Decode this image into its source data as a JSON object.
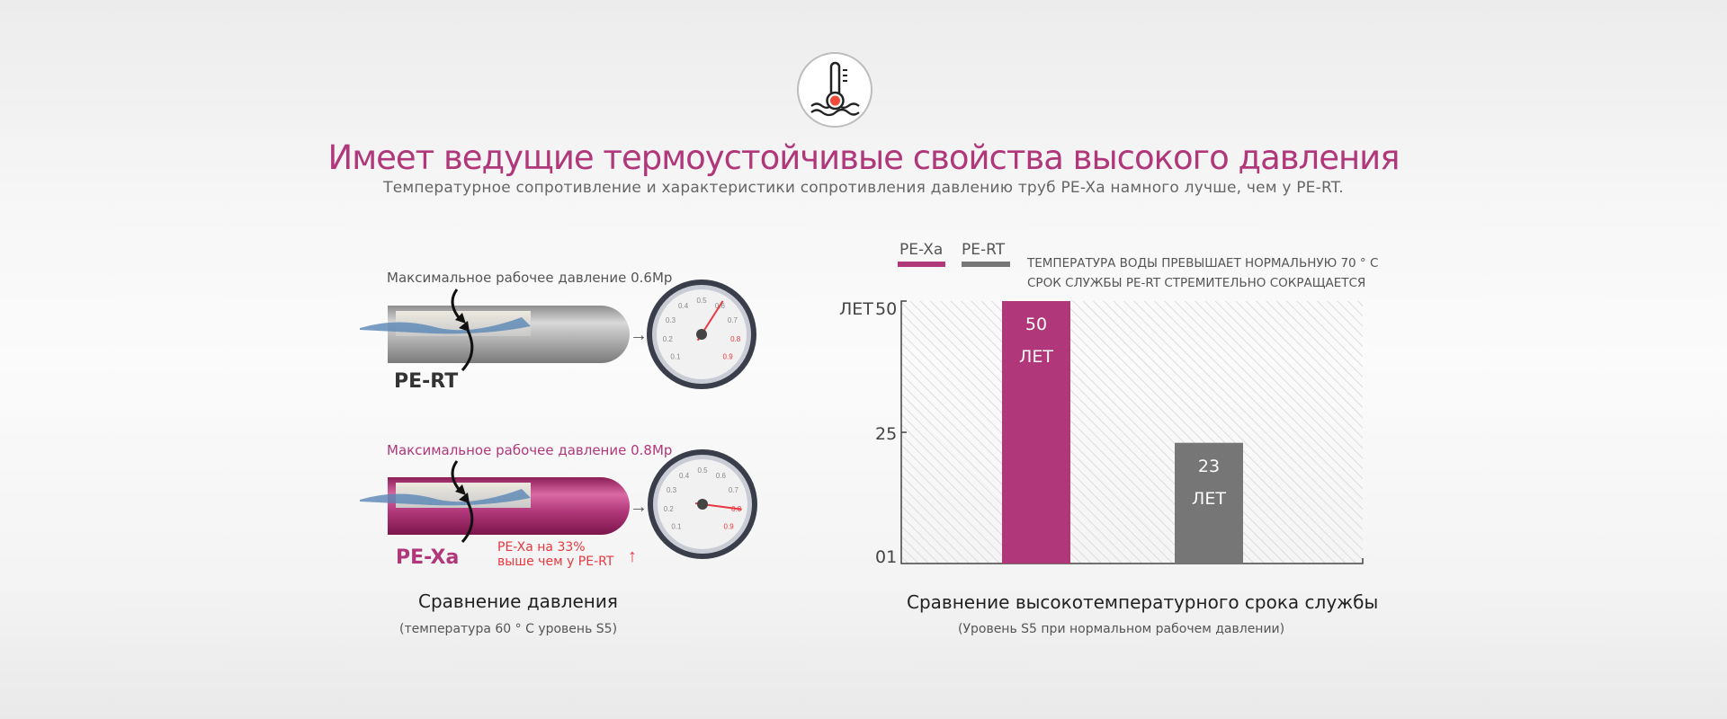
{
  "header": {
    "icon": "thermometer-water-icon",
    "title": "Имеет ведущие термоустойчивые свойства высокого давления",
    "subtitle": "Температурное сопротивление и характеристики сопротивления давлению труб PE-Xa намного лучше, чем у PE-RT."
  },
  "pressure": {
    "rt": {
      "label": "Максимальное рабочее давление 0.6Mp",
      "name": "PE-RT",
      "gauge_value": 0.6
    },
    "xa": {
      "label": "Максимальное рабочее давление 0.8Mp",
      "name": "PE-Xa",
      "gauge_value": 0.8,
      "note_line1": "PE-Xa на 33%",
      "note_line2": "выше чем у PE-RT",
      "note_arrow": "↑"
    },
    "gauge_ticks": [
      "0.1",
      "0.2",
      "0.3",
      "0.4",
      "0.5",
      "0.6",
      "0.7",
      "0.8",
      "0.9"
    ],
    "caption": "Сравнение давления",
    "subcaption": "(температура 60 ° C уровень S5)"
  },
  "chart_data": {
    "type": "bar",
    "categories": [
      "PE-Xa",
      "PE-RT"
    ],
    "values": [
      50,
      23
    ],
    "data_labels": [
      {
        "value": "50",
        "unit": "ЛЕТ"
      },
      {
        "value": "23",
        "unit": "ЛЕТ"
      }
    ],
    "legend": [
      {
        "name": "PE-Xa",
        "color": "#b0377a"
      },
      {
        "name": "PE-RT",
        "color": "#777677"
      }
    ],
    "legend_placement": "top-left",
    "annotation_line1": "ТЕМПЕРАТУРА ВОДЫ ПРЕВЫШАЕТ НОРМАЛЬНУЮ 70 ° C",
    "annotation_line2": "СРОК СЛУЖБЫ PE-RT СТРЕМИТЕЛЬНО СОКРАЩАЕТСЯ",
    "ylabel": "ЛЕТ",
    "yticks": [
      "01",
      "25",
      "50"
    ],
    "ylim": [
      0,
      50
    ],
    "grid": false,
    "title": "Сравнение высокотемпературного срока службы",
    "subtitle": "(Уровень S5 при нормальном рабочем давлении)"
  },
  "colors": {
    "accent": "#b0377a",
    "gray": "#777677",
    "red": "#e8373f"
  }
}
